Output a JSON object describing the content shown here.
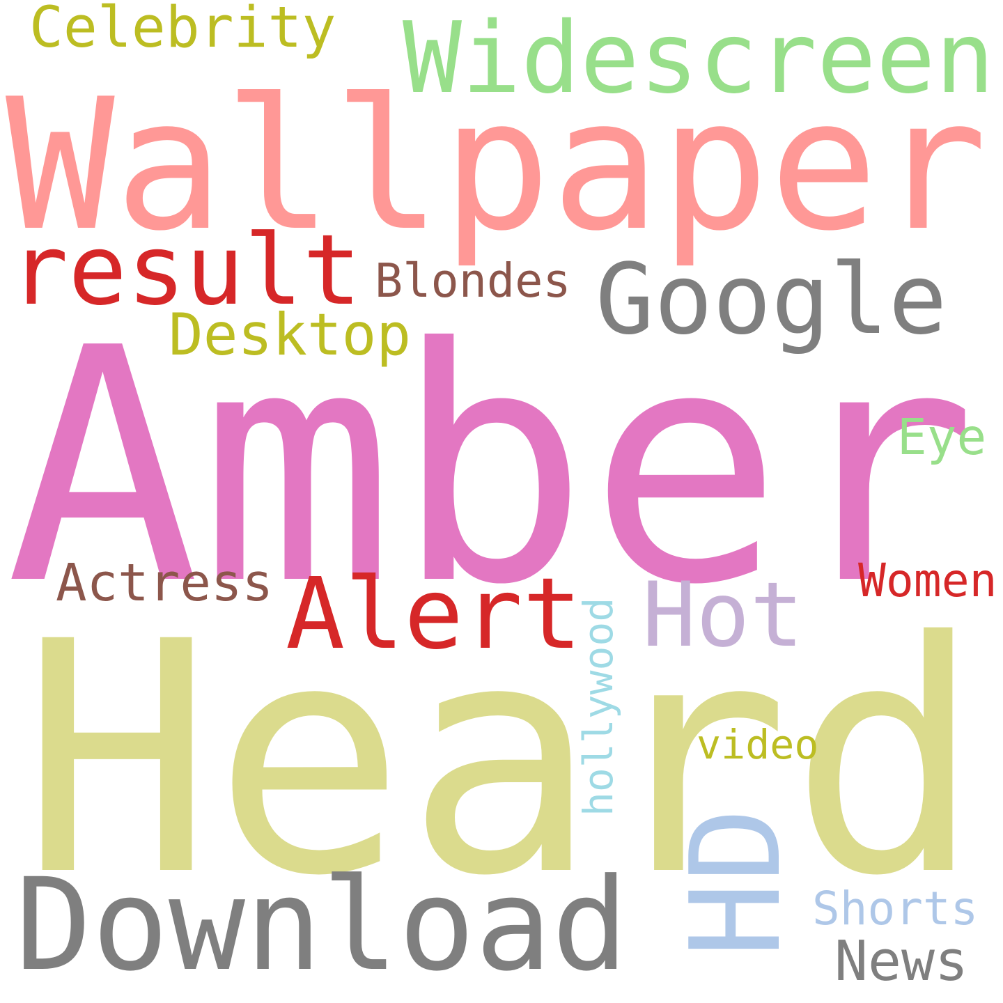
{
  "words": [
    {
      "id": "heard",
      "text": "Heard",
      "color": "#dbdb8d"
    },
    {
      "id": "amber",
      "text": "Amber",
      "color": "#e377c2"
    },
    {
      "id": "wallpaper",
      "text": "Wallpaper",
      "color": "#ff9896"
    },
    {
      "id": "download",
      "text": "Download",
      "color": "#7f7f7f"
    },
    {
      "id": "hd",
      "text": "HD",
      "color": "#aec7e8"
    },
    {
      "id": "widescreen",
      "text": "Widescreen",
      "color": "#98df8a"
    },
    {
      "id": "result",
      "text": "result",
      "color": "#d62728"
    },
    {
      "id": "google",
      "text": "Google",
      "color": "#7f7f7f"
    },
    {
      "id": "alert",
      "text": "Alert",
      "color": "#d62728"
    },
    {
      "id": "hot",
      "text": "Hot",
      "color": "#c5b0d5"
    },
    {
      "id": "celebrity",
      "text": "Celebrity",
      "color": "#bcbd22"
    },
    {
      "id": "desktop",
      "text": "Desktop",
      "color": "#bcbd22"
    },
    {
      "id": "blondes",
      "text": "Blondes",
      "color": "#8c564b"
    },
    {
      "id": "actress",
      "text": "Actress",
      "color": "#8c564b"
    },
    {
      "id": "hollywood",
      "text": "hollywood",
      "color": "#9edae5"
    },
    {
      "id": "news",
      "text": "News",
      "color": "#7f7f7f"
    },
    {
      "id": "shorts",
      "text": "Shorts",
      "color": "#aec7e8"
    },
    {
      "id": "eye",
      "text": "Eye",
      "color": "#98df8a"
    },
    {
      "id": "women",
      "text": "Women",
      "color": "#d62728"
    },
    {
      "id": "video",
      "text": "video",
      "color": "#bcbd22"
    }
  ]
}
